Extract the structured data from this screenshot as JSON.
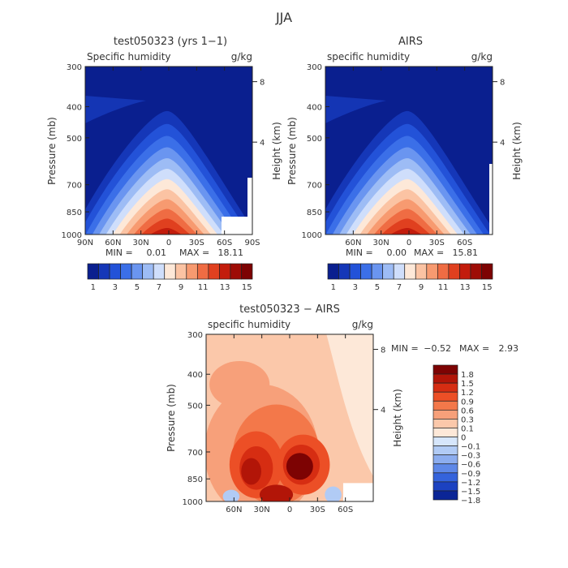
{
  "figure_title": "JJA",
  "chart_data": [
    {
      "type": "contour",
      "title": "test050323 (yrs 1−1)",
      "subtitle_left": "Specific humidity",
      "subtitle_right": "g/kg",
      "ylabel": "Pressure (mb)",
      "ylabel_right": "Height (km)",
      "x_ticks": [
        "90N",
        "60N",
        "30N",
        "0",
        "30S",
        "60S",
        "90S"
      ],
      "y_ticks": [
        "300",
        "400",
        "500",
        "700",
        "850",
        "1000"
      ],
      "height_ticks": [
        "8",
        "4"
      ],
      "min_label": "MIN =",
      "min_value": "0.01",
      "max_label": "MAX =",
      "max_value": "18.11",
      "colorbar_labels": [
        "1",
        "3",
        "5",
        "7",
        "9",
        "11",
        "13",
        "15"
      ]
    },
    {
      "type": "contour",
      "title": "AIRS",
      "subtitle_left": "specific humidity",
      "subtitle_right": "g/kg",
      "ylabel": "Pressure (mb)",
      "ylabel_right": "Height (km)",
      "x_ticks": [
        "60N",
        "30N",
        "0",
        "30S",
        "60S"
      ],
      "y_ticks": [
        "300",
        "400",
        "500",
        "700",
        "850",
        "1000"
      ],
      "height_ticks": [
        "8",
        "4"
      ],
      "min_label": "MIN =",
      "min_value": "0.00",
      "max_label": "MAX =",
      "max_value": "15.81",
      "colorbar_labels": [
        "1",
        "3",
        "5",
        "7",
        "9",
        "11",
        "13",
        "15"
      ]
    },
    {
      "type": "contour",
      "title": "test050323 − AIRS",
      "subtitle_left": "specific humidity",
      "subtitle_right": "g/kg",
      "ylabel": "Pressure (mb)",
      "ylabel_right": "Height (km)",
      "x_ticks": [
        "60N",
        "30N",
        "0",
        "30S",
        "60S"
      ],
      "y_ticks": [
        "300",
        "400",
        "500",
        "700",
        "850",
        "1000"
      ],
      "height_ticks": [
        "8",
        "4"
      ],
      "min_label": "MIN =",
      "min_value": "−0.52",
      "max_label": "MAX =",
      "max_value": "2.93",
      "colorbar_labels": [
        "1.8",
        "1.5",
        "1.2",
        "0.9",
        "0.6",
        "0.3",
        "0.1",
        "0",
        "−0.1",
        "−0.3",
        "−0.6",
        "−0.9",
        "−1.2",
        "−1.5",
        "−1.8"
      ]
    }
  ],
  "colors": {
    "abs_scale": [
      "#0a1f8f",
      "#1537b8",
      "#2352d8",
      "#3b6fe8",
      "#6a95f0",
      "#9dbcf5",
      "#cfdefb",
      "#fde8d8",
      "#fbc3a3",
      "#f79a70",
      "#ef6c43",
      "#e0401f",
      "#c31c0c",
      "#9e0c06",
      "#7d0303"
    ],
    "diff_scale": [
      "#7d0303",
      "#b21508",
      "#d62d12",
      "#ec4f26",
      "#f3784a",
      "#f7a07a",
      "#fbc8aa",
      "#fde8d8",
      "#d6e6fb",
      "#b1cbf5",
      "#8cadef",
      "#5e88e8",
      "#3463dc",
      "#1c42c1",
      "#0b2596"
    ]
  }
}
